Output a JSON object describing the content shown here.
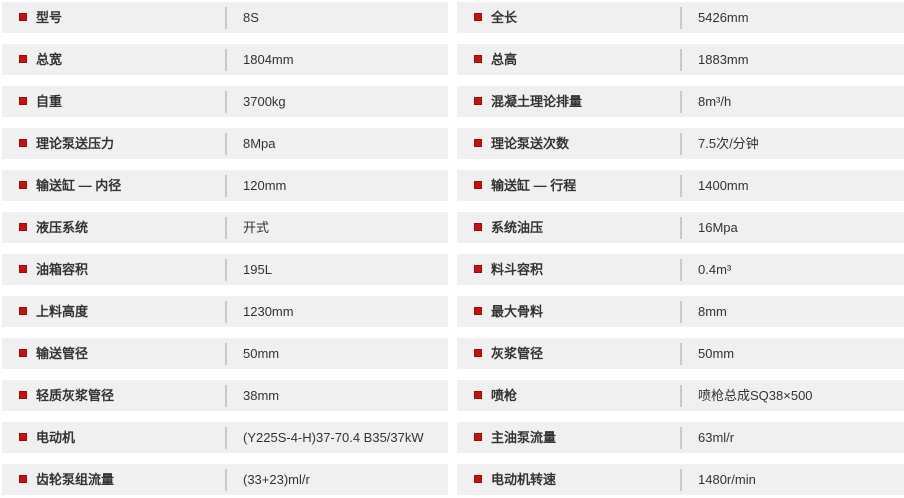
{
  "table": {
    "columns": [
      {
        "rows": [
          {
            "label": "型号",
            "value": "8S"
          },
          {
            "label": "总宽",
            "value": "1804mm"
          },
          {
            "label": "自重",
            "value": "3700kg"
          },
          {
            "label": "理论泵送压力",
            "value": "8Mpa"
          },
          {
            "label": "输送缸 — 内径",
            "value": "120mm"
          },
          {
            "label": "液压系统",
            "value": "开式"
          },
          {
            "label": "油箱容积",
            "value": "195L"
          },
          {
            "label": "上料高度",
            "value": "1230mm"
          },
          {
            "label": "输送管径",
            "value": "50mm"
          },
          {
            "label": "轻质灰浆管径",
            "value": "38mm"
          },
          {
            "label": "电动机",
            "value": "(Y225S-4-H)37-70.4 B35/37kW"
          },
          {
            "label": "齿轮泵组流量",
            "value": "(33+23)ml/r"
          }
        ]
      },
      {
        "rows": [
          {
            "label": "全长",
            "value": "5426mm"
          },
          {
            "label": "总高",
            "value": "1883mm"
          },
          {
            "label": "混凝土理论排量",
            "value": "8m³/h"
          },
          {
            "label": "理论泵送次数",
            "value": "7.5次/分钟"
          },
          {
            "label": "输送缸 — 行程",
            "value": "1400mm"
          },
          {
            "label": "系统油压",
            "value": "16Mpa"
          },
          {
            "label": "料斗容积",
            "value": "0.4m³"
          },
          {
            "label": "最大骨料",
            "value": "8mm"
          },
          {
            "label": "灰浆管径",
            "value": "50mm"
          },
          {
            "label": "喷枪",
            "value": "喷枪总成SQ38×500"
          },
          {
            "label": "主油泵流量",
            "value": "63ml/r"
          },
          {
            "label": "电动机转速",
            "value": "1480r/min"
          }
        ]
      }
    ]
  },
  "colors": {
    "row_background": "#f0f0f0",
    "bullet_red": "#c21310",
    "label_text": "#333333",
    "value_text": "#333333",
    "divider": "#c9c9c9"
  }
}
